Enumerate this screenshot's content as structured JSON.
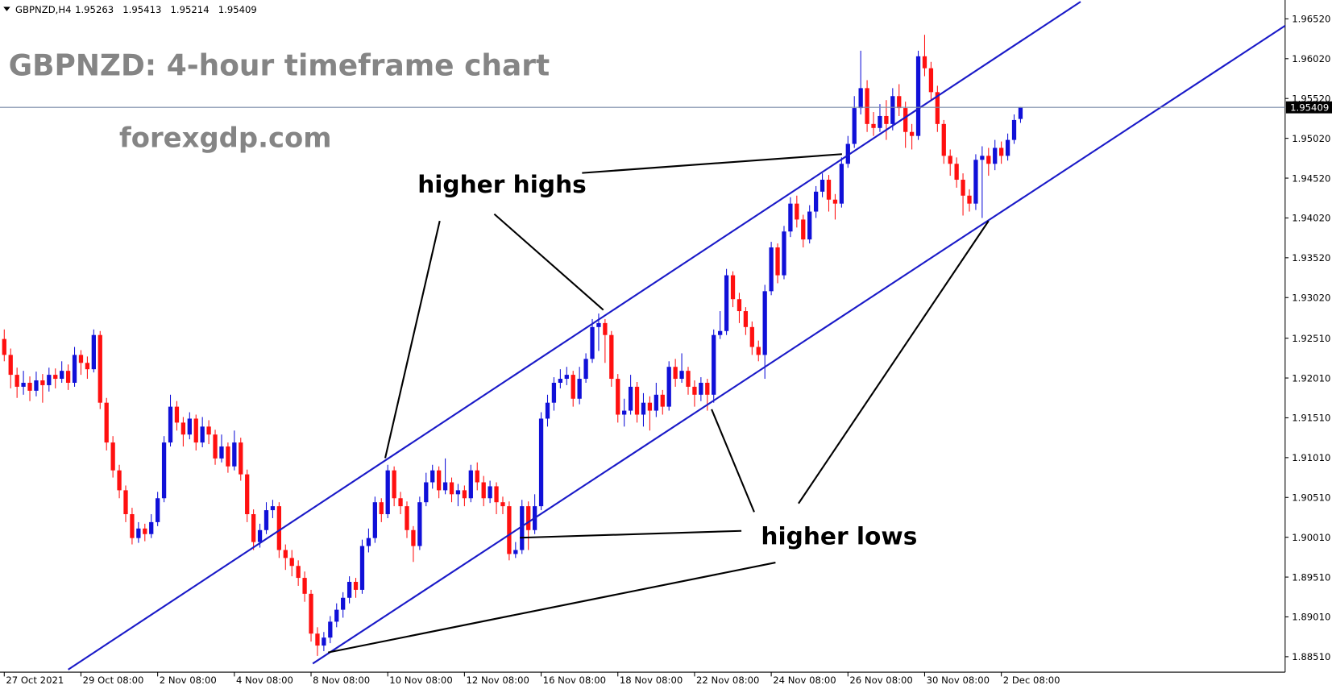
{
  "chart_data": {
    "type": "candlestick",
    "symbol": "GBPNZD,H4",
    "title": "GBPNZD: 4-hour timeframe chart",
    "watermark": "forexgdp.com",
    "annotations": [
      "higher highs",
      "higher lows"
    ],
    "categories": [
      "27 Oct 2021",
      null,
      null,
      null,
      null,
      null,
      null,
      null,
      null,
      null,
      null,
      null,
      "29 Oct 08:00",
      null,
      null,
      null,
      null,
      null,
      null,
      null,
      null,
      null,
      null,
      null,
      "2 Nov 08:00",
      null,
      null,
      null,
      null,
      null,
      null,
      null,
      null,
      null,
      null,
      null,
      "4 Nov 08:00",
      null,
      null,
      null,
      null,
      null,
      null,
      null,
      null,
      null,
      null,
      null,
      "8 Nov 08:00",
      null,
      null,
      null,
      null,
      null,
      null,
      null,
      null,
      null,
      null,
      null,
      "10 Nov 08:00",
      null,
      null,
      null,
      null,
      null,
      null,
      null,
      null,
      null,
      null,
      null,
      "12 Nov 08:00",
      null,
      null,
      null,
      null,
      null,
      null,
      null,
      null,
      null,
      null,
      null,
      "16 Nov 08:00",
      null,
      null,
      null,
      null,
      null,
      null,
      null,
      null,
      null,
      null,
      null,
      "18 Nov 08:00",
      null,
      null,
      null,
      null,
      null,
      null,
      null,
      null,
      null,
      null,
      null,
      "22 Nov 08:00",
      null,
      null,
      null,
      null,
      null,
      null,
      null,
      null,
      null,
      null,
      null,
      "24 Nov 08:00",
      null,
      null,
      null,
      null,
      null,
      null,
      null,
      null,
      null,
      null,
      null,
      "26 Nov 08:00",
      null,
      null,
      null,
      null,
      null,
      null,
      null,
      null,
      null,
      null,
      null,
      "30 Nov 08:00",
      null,
      null,
      null,
      null,
      null,
      null,
      null,
      null,
      null,
      null,
      null,
      "2 Dec 08:00",
      null,
      null,
      null
    ],
    "candles": [
      [
        1.925,
        1.9262,
        1.9222,
        1.923
      ],
      [
        1.923,
        1.9238,
        1.9188,
        1.9205
      ],
      [
        1.9205,
        1.9214,
        1.9176,
        1.919
      ],
      [
        1.919,
        1.921,
        1.918,
        1.9195
      ],
      [
        1.9195,
        1.9203,
        1.9172,
        1.9185
      ],
      [
        1.9185,
        1.9209,
        1.9178,
        1.9198
      ],
      [
        1.9198,
        1.9206,
        1.917,
        1.9192
      ],
      [
        1.9192,
        1.9214,
        1.9184,
        1.9205
      ],
      [
        1.9205,
        1.9213,
        1.9188,
        1.92
      ],
      [
        1.92,
        1.9222,
        1.9195,
        1.921
      ],
      [
        1.921,
        1.9218,
        1.9186,
        1.9195
      ],
      [
        1.9195,
        1.924,
        1.919,
        1.923
      ],
      [
        1.923,
        1.9236,
        1.9205,
        1.922
      ],
      [
        1.922,
        1.9228,
        1.92,
        1.9212
      ],
      [
        1.9212,
        1.9262,
        1.9208,
        1.9255
      ],
      [
        1.9255,
        1.926,
        1.9162,
        1.917
      ],
      [
        1.917,
        1.9176,
        1.911,
        1.912
      ],
      [
        1.912,
        1.9128,
        1.9076,
        1.9085
      ],
      [
        1.9085,
        1.9092,
        1.905,
        1.906
      ],
      [
        1.906,
        1.9066,
        1.902,
        1.903
      ],
      [
        1.903,
        1.9038,
        1.8992,
        1.9
      ],
      [
        1.9,
        1.902,
        1.8994,
        1.9012
      ],
      [
        1.9012,
        1.9018,
        1.8996,
        1.9005
      ],
      [
        1.9005,
        1.903,
        1.9,
        1.902
      ],
      [
        1.902,
        1.9058,
        1.9015,
        1.905
      ],
      [
        1.905,
        1.9128,
        1.9045,
        1.912
      ],
      [
        1.912,
        1.918,
        1.9115,
        1.9165
      ],
      [
        1.9165,
        1.9172,
        1.9135,
        1.9145
      ],
      [
        1.9145,
        1.9152,
        1.9115,
        1.913
      ],
      [
        1.913,
        1.9158,
        1.9124,
        1.915
      ],
      [
        1.915,
        1.9155,
        1.911,
        1.912
      ],
      [
        1.912,
        1.9152,
        1.9114,
        1.914
      ],
      [
        1.914,
        1.9148,
        1.9118,
        1.913
      ],
      [
        1.913,
        1.9136,
        1.9092,
        1.91
      ],
      [
        1.91,
        1.913,
        1.9095,
        1.9115
      ],
      [
        1.9115,
        1.912,
        1.9082,
        1.909
      ],
      [
        1.909,
        1.9135,
        1.9085,
        1.912
      ],
      [
        1.912,
        1.9126,
        1.9072,
        1.908
      ],
      [
        1.908,
        1.9086,
        1.902,
        1.903
      ],
      [
        1.903,
        1.9036,
        1.8985,
        1.8995
      ],
      [
        1.8995,
        1.9018,
        1.8988,
        1.901
      ],
      [
        1.901,
        1.9045,
        1.9005,
        1.9035
      ],
      [
        1.9035,
        1.9048,
        1.9025,
        1.904
      ],
      [
        1.904,
        1.9045,
        1.8975,
        1.8985
      ],
      [
        1.8985,
        1.8992,
        1.896,
        1.8975
      ],
      [
        1.8975,
        1.8985,
        1.8952,
        1.8965
      ],
      [
        1.8965,
        1.8972,
        1.894,
        1.895
      ],
      [
        1.895,
        1.8958,
        1.892,
        1.893
      ],
      [
        1.893,
        1.8935,
        1.887,
        1.888
      ],
      [
        1.888,
        1.8888,
        1.8852,
        1.8865
      ],
      [
        1.8865,
        1.8882,
        1.8858,
        1.8875
      ],
      [
        1.8875,
        1.8902,
        1.8868,
        1.8895
      ],
      [
        1.8895,
        1.8918,
        1.8888,
        1.891
      ],
      [
        1.891,
        1.8932,
        1.89,
        1.8925
      ],
      [
        1.8925,
        1.8952,
        1.8918,
        1.8945
      ],
      [
        1.8945,
        1.895,
        1.8925,
        1.8935
      ],
      [
        1.8935,
        1.8998,
        1.893,
        1.899
      ],
      [
        1.899,
        1.9012,
        1.8982,
        1.9
      ],
      [
        1.9,
        1.9052,
        1.8994,
        1.9045
      ],
      [
        1.9045,
        1.905,
        1.902,
        1.903
      ],
      [
        1.903,
        1.9092,
        1.9025,
        1.9085
      ],
      [
        1.9085,
        1.909,
        1.904,
        1.905
      ],
      [
        1.905,
        1.9058,
        1.903,
        1.904
      ],
      [
        1.904,
        1.9046,
        1.9,
        1.901
      ],
      [
        1.901,
        1.9015,
        1.897,
        1.899
      ],
      [
        1.899,
        1.9052,
        1.8985,
        1.9045
      ],
      [
        1.9045,
        1.9082,
        1.904,
        1.907
      ],
      [
        1.907,
        1.9092,
        1.9062,
        1.9085
      ],
      [
        1.9085,
        1.909,
        1.905,
        1.906
      ],
      [
        1.906,
        1.91,
        1.9055,
        1.907
      ],
      [
        1.907,
        1.9076,
        1.9045,
        1.9055
      ],
      [
        1.9055,
        1.9068,
        1.904,
        1.906
      ],
      [
        1.906,
        1.9066,
        1.904,
        1.905
      ],
      [
        1.905,
        1.9092,
        1.9045,
        1.9085
      ],
      [
        1.9085,
        1.9095,
        1.906,
        1.907
      ],
      [
        1.907,
        1.9078,
        1.904,
        1.905
      ],
      [
        1.905,
        1.9072,
        1.9044,
        1.9065
      ],
      [
        1.9065,
        1.907,
        1.903,
        1.9045
      ],
      [
        1.9045,
        1.9052,
        1.903,
        1.904
      ],
      [
        1.904,
        1.9046,
        1.8972,
        1.898
      ],
      [
        1.898,
        1.8995,
        1.8975,
        1.8985
      ],
      [
        1.8985,
        1.9048,
        1.898,
        1.904
      ],
      [
        1.904,
        1.9046,
        1.8985,
        1.901
      ],
      [
        1.901,
        1.9055,
        1.9005,
        1.904
      ],
      [
        1.904,
        1.9158,
        1.9035,
        1.915
      ],
      [
        1.915,
        1.918,
        1.914,
        1.917
      ],
      [
        1.917,
        1.9202,
        1.916,
        1.9195
      ],
      [
        1.9195,
        1.9212,
        1.9188,
        1.92
      ],
      [
        1.92,
        1.9215,
        1.9192,
        1.9205
      ],
      [
        1.9205,
        1.921,
        1.9165,
        1.9175
      ],
      [
        1.9175,
        1.9215,
        1.9168,
        1.92
      ],
      [
        1.92,
        1.9232,
        1.9195,
        1.9225
      ],
      [
        1.9225,
        1.9275,
        1.922,
        1.9265
      ],
      [
        1.9265,
        1.9282,
        1.9235,
        1.927
      ],
      [
        1.927,
        1.9275,
        1.922,
        1.9255
      ],
      [
        1.9255,
        1.926,
        1.919,
        1.92
      ],
      [
        1.92,
        1.9206,
        1.9145,
        1.9155
      ],
      [
        1.9155,
        1.9175,
        1.914,
        1.916
      ],
      [
        1.916,
        1.9205,
        1.9155,
        1.919
      ],
      [
        1.919,
        1.9196,
        1.9145,
        1.9155
      ],
      [
        1.9155,
        1.9182,
        1.914,
        1.917
      ],
      [
        1.917,
        1.9178,
        1.9135,
        1.916
      ],
      [
        1.916,
        1.9195,
        1.9152,
        1.918
      ],
      [
        1.918,
        1.9186,
        1.9155,
        1.9165
      ],
      [
        1.9165,
        1.9222,
        1.916,
        1.9215
      ],
      [
        1.9215,
        1.9225,
        1.919,
        1.92
      ],
      [
        1.92,
        1.9232,
        1.9195,
        1.921
      ],
      [
        1.921,
        1.9215,
        1.918,
        1.919
      ],
      [
        1.919,
        1.9198,
        1.9165,
        1.918
      ],
      [
        1.918,
        1.9202,
        1.9172,
        1.9195
      ],
      [
        1.9195,
        1.92,
        1.916,
        1.918
      ],
      [
        1.918,
        1.9262,
        1.917,
        1.9255
      ],
      [
        1.9255,
        1.9285,
        1.925,
        1.926
      ],
      [
        1.926,
        1.9338,
        1.9255,
        1.933
      ],
      [
        1.933,
        1.9335,
        1.929,
        1.93
      ],
      [
        1.93,
        1.9308,
        1.927,
        1.9285
      ],
      [
        1.9285,
        1.929,
        1.9255,
        1.9265
      ],
      [
        1.9265,
        1.9272,
        1.923,
        1.924
      ],
      [
        1.924,
        1.9248,
        1.9222,
        1.923
      ],
      [
        1.923,
        1.9318,
        1.92,
        1.931
      ],
      [
        1.931,
        1.9372,
        1.9305,
        1.9365
      ],
      [
        1.9365,
        1.937,
        1.932,
        1.933
      ],
      [
        1.933,
        1.9392,
        1.9325,
        1.9385
      ],
      [
        1.9385,
        1.9428,
        1.9378,
        1.942
      ],
      [
        1.942,
        1.943,
        1.939,
        1.94
      ],
      [
        1.94,
        1.9406,
        1.9365,
        1.9375
      ],
      [
        1.9375,
        1.9418,
        1.937,
        1.941
      ],
      [
        1.941,
        1.9442,
        1.9402,
        1.9435
      ],
      [
        1.9435,
        1.9458,
        1.9428,
        1.945
      ],
      [
        1.945,
        1.9456,
        1.941,
        1.9425
      ],
      [
        1.9425,
        1.9432,
        1.94,
        1.942
      ],
      [
        1.942,
        1.9478,
        1.9415,
        1.947
      ],
      [
        1.947,
        1.9505,
        1.9465,
        1.9495
      ],
      [
        1.9495,
        1.9555,
        1.949,
        1.954
      ],
      [
        1.954,
        1.9612,
        1.9532,
        1.9565
      ],
      [
        1.9565,
        1.9575,
        1.951,
        1.952
      ],
      [
        1.952,
        1.9535,
        1.9505,
        1.9515
      ],
      [
        1.9515,
        1.9545,
        1.951,
        1.953
      ],
      [
        1.953,
        1.955,
        1.95,
        1.952
      ],
      [
        1.952,
        1.9565,
        1.9512,
        1.9555
      ],
      [
        1.9555,
        1.957,
        1.953,
        1.954
      ],
      [
        1.954,
        1.9548,
        1.949,
        1.951
      ],
      [
        1.951,
        1.952,
        1.9488,
        1.9505
      ],
      [
        1.9505,
        1.9612,
        1.95,
        1.9605
      ],
      [
        1.9605,
        1.9632,
        1.958,
        1.959
      ],
      [
        1.959,
        1.9598,
        1.955,
        1.956
      ],
      [
        1.956,
        1.9568,
        1.951,
        1.952
      ],
      [
        1.952,
        1.9525,
        1.947,
        1.948
      ],
      [
        1.948,
        1.9488,
        1.9455,
        1.947
      ],
      [
        1.947,
        1.9478,
        1.944,
        1.945
      ],
      [
        1.945,
        1.9458,
        1.9405,
        1.943
      ],
      [
        1.943,
        1.9438,
        1.941,
        1.942
      ],
      [
        1.942,
        1.9482,
        1.9412,
        1.9475
      ],
      [
        1.9475,
        1.9492,
        1.9402,
        1.948
      ],
      [
        1.948,
        1.949,
        1.9455,
        1.947
      ],
      [
        1.947,
        1.95,
        1.9462,
        1.949
      ],
      [
        1.949,
        1.9498,
        1.947,
        1.948
      ],
      [
        1.948,
        1.9508,
        1.9474,
        1.95
      ],
      [
        1.95,
        1.9532,
        1.9495,
        1.9525
      ],
      [
        1.95263,
        1.95413,
        1.95214,
        1.95409
      ]
    ],
    "ylim": [
      1.88316,
      1.96757
    ],
    "yticks": [
      {
        "value": 1.9652,
        "label": "1.96520"
      },
      {
        "value": 1.9602,
        "label": "1.96020"
      },
      {
        "value": 1.9552,
        "label": "1.95520"
      },
      {
        "value": 1.9502,
        "label": "1.95020"
      },
      {
        "value": 1.9452,
        "label": "1.94520"
      },
      {
        "value": 1.9402,
        "label": "1.94020"
      },
      {
        "value": 1.9352,
        "label": "1.93520"
      },
      {
        "value": 1.9302,
        "label": "1.93020"
      },
      {
        "value": 1.9251,
        "label": "1.92510"
      },
      {
        "value": 1.9201,
        "label": "1.92010"
      },
      {
        "value": 1.9151,
        "label": "1.91510"
      },
      {
        "value": 1.9101,
        "label": "1.91010"
      },
      {
        "value": 1.9051,
        "label": "1.90510"
      },
      {
        "value": 1.9001,
        "label": "1.90010"
      },
      {
        "value": 1.8951,
        "label": "1.89510"
      },
      {
        "value": 1.8901,
        "label": "1.89010"
      },
      {
        "value": 1.8851,
        "label": "1.88510"
      }
    ],
    "colors": {
      "up": "#1010d8",
      "down": "#ff1010"
    },
    "price_line": true
  }
}
